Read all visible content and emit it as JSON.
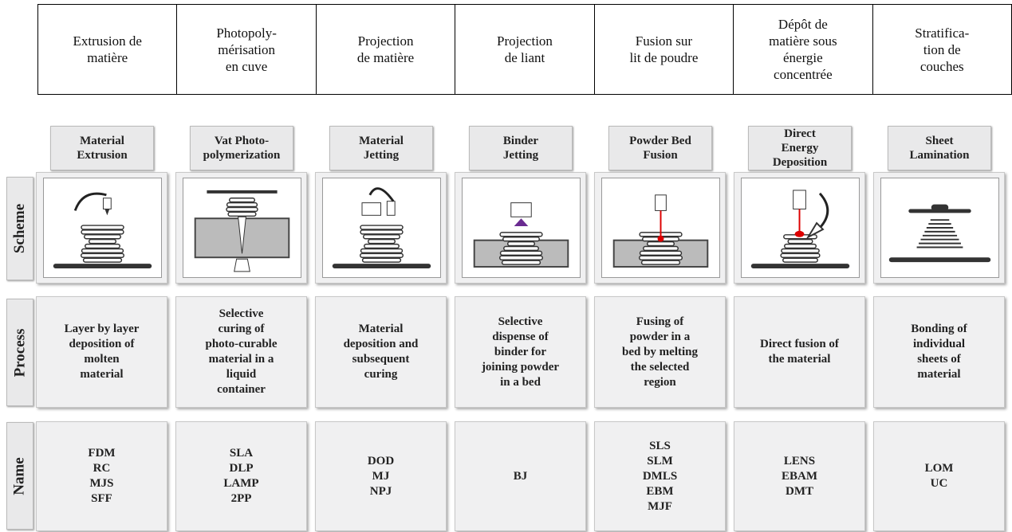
{
  "top_headers": [
    "Extrusion de\nmatière",
    "Photopoly-\nmérisation\nen cuve",
    "Projection\nde matière",
    "Projection\nde liant",
    "Fusion sur\nlit de poudre",
    "Dépôt de\nmatière sous\nénergie\nconcentrée",
    "Stratifica-\ntion de\ncouches"
  ],
  "row_labels": [
    "Scheme",
    "Process",
    "Name"
  ],
  "columns": [
    {
      "title": "Material\nExtrusion",
      "process": "Layer by layer\ndeposition of\nmolten\nmaterial",
      "names": [
        "FDM",
        "RC",
        "MJS",
        "SFF"
      ]
    },
    {
      "title": "Vat Photo-\npolymerization",
      "process": "Selective\ncuring of\nphoto-curable\nmaterial in a\nliquid\ncontainer",
      "names": [
        "SLA",
        "DLP",
        "LAMP",
        "2PP"
      ]
    },
    {
      "title": "Material\nJetting",
      "process": "Material\ndeposition and\nsubsequent\ncuring",
      "names": [
        "DOD",
        "MJ",
        "NPJ"
      ]
    },
    {
      "title": "Binder\nJetting",
      "process": "Selective\ndispense of\nbinder for\njoining powder\nin a bed",
      "names": [
        "BJ"
      ]
    },
    {
      "title": "Powder Bed\nFusion",
      "process": "Fusing of\npowder in a\nbed by melting\nthe selected\nregion",
      "names": [
        "SLS",
        "SLM",
        "DMLS",
        "EBM",
        "MJF"
      ]
    },
    {
      "title": "Direct\nEnergy\nDeposition",
      "process": "Direct fusion of\nthe material",
      "names": [
        "LENS",
        "EBAM",
        "DMT"
      ]
    },
    {
      "title": "Sheet\nLamination",
      "process": "Bonding of\nindividual\nsheets of\nmaterial",
      "names": [
        "LOM",
        "UC"
      ]
    }
  ]
}
